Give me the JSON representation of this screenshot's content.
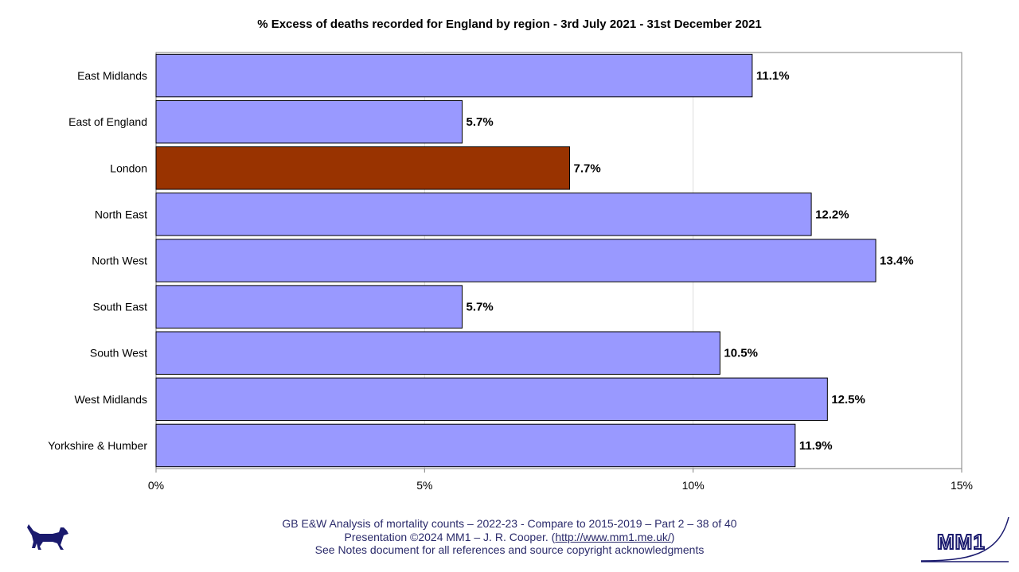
{
  "chart_data": {
    "type": "bar",
    "orientation": "horizontal",
    "title": "% Excess of deaths recorded for England by region - 3rd July 2021 - 31st December 2021",
    "categories": [
      "East Midlands",
      "East of  England",
      "London",
      "North East",
      "North West",
      "South East",
      "South West",
      "West Midlands",
      "Yorkshire & Humber"
    ],
    "values": [
      11.1,
      5.7,
      7.7,
      12.2,
      13.4,
      5.7,
      10.5,
      12.5,
      11.9
    ],
    "value_labels": [
      "11.1%",
      "5.7%",
      "7.7%",
      "12.2%",
      "13.4%",
      "5.7%",
      "10.5%",
      "12.5%",
      "11.9%"
    ],
    "highlight": "London",
    "xlim": [
      0,
      15
    ],
    "x_ticks": [
      0,
      5,
      10,
      15
    ],
    "x_tick_labels": [
      "0%",
      "5%",
      "10%",
      "15%"
    ],
    "xlabel": "",
    "ylabel": "",
    "grid": "vertical",
    "colors": {
      "bar": "#9999ff",
      "highlight": "#993300",
      "outline": "#000000",
      "gridline": "#dddddd"
    }
  },
  "footer": {
    "line1": "GB E&W Analysis of mortality counts – 2022-23 - Compare to 2015-2019 – Part 2 – 38 of 40",
    "line2_pre": "Presentation ©2024 MM1 – J. R. Cooper. (",
    "line2_link": "http://www.mm1.me.uk/",
    "line2_post": ")",
    "line3": "See Notes document for all references and source copyright acknowledgments"
  },
  "logos": {
    "right_text": "MM1",
    "left_icon": "dog-icon"
  }
}
